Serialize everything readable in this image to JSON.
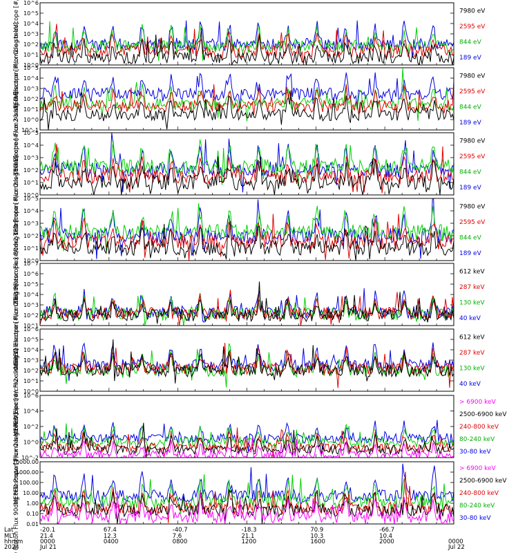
{
  "colors": {
    "black": "#000000",
    "red": "#e00000",
    "green": "#00d000",
    "blue": "#0000e0",
    "magenta": "#ff00ff",
    "text_green": "#00b000"
  },
  "footer": {
    "row_labels": [
      "Lat",
      "MLT",
      "hhmm",
      "2024"
    ],
    "columns": [
      {
        "lat": "-20.1",
        "mlt": "21.4",
        "hhmm": "0000",
        "date": "Jul 21"
      },
      {
        "lat": "67.4",
        "mlt": "12.3",
        "hhmm": "0400",
        "date": ""
      },
      {
        "lat": "-40.7",
        "mlt": "7.6",
        "hhmm": "0800",
        "date": ""
      },
      {
        "lat": "-18.3",
        "mlt": "21.1",
        "hhmm": "1200",
        "date": ""
      },
      {
        "lat": "70.9",
        "mlt": "10.3",
        "hhmm": "1600",
        "date": ""
      },
      {
        "lat": "-66.7",
        "mlt": "10.4",
        "hhmm": "2000",
        "date": ""
      },
      {
        "lat": "",
        "mlt": "",
        "hhmm": "0000",
        "date": "Jul 22"
      }
    ]
  },
  "chart_data": [
    {
      "type": "line",
      "scale": "log",
      "ylabel": "TED Electron Flux 0deg telescope [#/cm2-s-str-eV]",
      "ylim": [
        1,
        1000000
      ],
      "xlim_hours": [
        0,
        24
      ],
      "yticks": [
        "10^0",
        "10^1",
        "10^2",
        "10^3",
        "10^4",
        "10^5",
        "10^6"
      ],
      "legend_position": "right",
      "series": [
        {
          "name": "7980 eV",
          "color": "black",
          "typical": 5
        },
        {
          "name": "2595 eV",
          "color": "red",
          "typical": 20
        },
        {
          "name": "844 eV",
          "color": "green",
          "typical": 60
        },
        {
          "name": "189 eV",
          "color": "blue",
          "typical": 100
        }
      ]
    },
    {
      "type": "line",
      "scale": "log",
      "ylabel": "TED Electron Flux 30deg telescope [#/cm2-s-str-eV]",
      "ylim": [
        0.1,
        100000
      ],
      "xlim_hours": [
        0,
        24
      ],
      "yticks": [
        "10^-1",
        "10^0",
        "10^1",
        "10^2",
        "10^3",
        "10^4",
        "10^5"
      ],
      "legend_position": "right",
      "series": [
        {
          "name": "7980 eV",
          "color": "black",
          "typical": 3
        },
        {
          "name": "2595 eV",
          "color": "red",
          "typical": 20
        },
        {
          "name": "844 eV",
          "color": "green",
          "typical": 30
        },
        {
          "name": "189 eV",
          "color": "blue",
          "typical": 300
        }
      ]
    },
    {
      "type": "line",
      "scale": "log",
      "ylabel": "TED Proton Flux 0deg telescope [#/cm2-s-str-eV]",
      "ylim": [
        1,
        100000
      ],
      "xlim_hours": [
        0,
        24
      ],
      "yticks": [
        "10^0",
        "10^1",
        "10^2",
        "10^3",
        "10^4",
        "10^5"
      ],
      "legend_position": "right",
      "series": [
        {
          "name": "7980 eV",
          "color": "black",
          "typical": 10
        },
        {
          "name": "2595 eV",
          "color": "red",
          "typical": 30
        },
        {
          "name": "844 eV",
          "color": "green",
          "typical": 200
        },
        {
          "name": "189 eV",
          "color": "blue",
          "typical": 100
        }
      ]
    },
    {
      "type": "line",
      "scale": "log",
      "ylabel": "TED Proton Flux 30deg telescope [#/cm2-s-str-eV]",
      "ylim": [
        1,
        100000
      ],
      "xlim_hours": [
        0,
        24
      ],
      "yticks": [
        "10^0",
        "10^1",
        "10^2",
        "10^3",
        "10^4",
        "10^5"
      ],
      "legend_position": "right",
      "series": [
        {
          "name": "7980 eV",
          "color": "black",
          "typical": 10
        },
        {
          "name": "2595 eV",
          "color": "red",
          "typical": 30
        },
        {
          "name": "844 eV",
          "color": "green",
          "typical": 200
        },
        {
          "name": "189 eV",
          "color": "blue",
          "typical": 100
        }
      ]
    },
    {
      "type": "line",
      "scale": "log",
      "ylabel": "MEPED Electron Flux 0deg telescope [#/cm2-s-str]",
      "ylim": [
        10,
        10000000
      ],
      "xlim_hours": [
        0,
        24
      ],
      "yticks": [
        "10^1",
        "10^2",
        "10^3",
        "10^4",
        "10^5",
        "10^6",
        "10^7"
      ],
      "legend_position": "right",
      "series": [
        {
          "name": "612 keV",
          "color": "black",
          "typical": 100
        },
        {
          "name": "287 keV",
          "color": "red",
          "typical": 150
        },
        {
          "name": "130 keV",
          "color": "green",
          "typical": 120
        },
        {
          "name": "40 keV",
          "color": "blue",
          "typical": 200
        }
      ]
    },
    {
      "type": "line",
      "scale": "log",
      "ylabel": "MEPED Electron Flux 90deg telescope [#/cm2-s-str]",
      "ylim": [
        1,
        1000000
      ],
      "xlim_hours": [
        0,
        24
      ],
      "yticks": [
        "10^0",
        "10^1",
        "10^2",
        "10^3",
        "10^4",
        "10^5",
        "10^6"
      ],
      "legend_position": "right",
      "series": [
        {
          "name": "612 keV",
          "color": "black",
          "typical": 100
        },
        {
          "name": "287 keV",
          "color": "red",
          "typical": 150
        },
        {
          "name": "130 keV",
          "color": "green",
          "typical": 100
        },
        {
          "name": "40 keV",
          "color": "blue",
          "typical": 300
        }
      ]
    },
    {
      "type": "line",
      "scale": "log",
      "ylabel": "MEPED Proton Flux 0deg telescope [#/cm2-s-str-keV]",
      "ylim": [
        0.01,
        1000000
      ],
      "xlim_hours": [
        0,
        24
      ],
      "yticks": [
        "10^-2",
        "10^0",
        "10^2",
        "10^4",
        "10^6"
      ],
      "legend_position": "right",
      "series": [
        {
          "name": "> 6900 keV",
          "color": "magenta",
          "typical": 0.02
        },
        {
          "name": "2500-6900 keV",
          "color": "black",
          "typical": 0.1
        },
        {
          "name": "240-800 keV",
          "color": "red",
          "typical": 0.2
        },
        {
          "name": "80-240 keV",
          "color": "green",
          "typical": 1
        },
        {
          "name": "30-80 keV",
          "color": "blue",
          "typical": 3
        }
      ]
    },
    {
      "type": "line",
      "scale": "log",
      "ylabel": "MEPED Proton Flux 90deg telescope [#/cm2-s-str-keV]",
      "ylim": [
        0.01,
        10000
      ],
      "xlim_hours": [
        0,
        24
      ],
      "yticks": [
        "0.01",
        "0.10",
        "1.00",
        "10.00",
        "100.00",
        "1000.00",
        "10000.00"
      ],
      "legend_position": "right",
      "series": [
        {
          "name": "> 6900 keV",
          "color": "magenta",
          "typical": 0.05
        },
        {
          "name": "2500-6900 keV",
          "color": "black",
          "typical": 0.2
        },
        {
          "name": "240-800 keV",
          "color": "red",
          "typical": 0.3
        },
        {
          "name": "80-240 keV",
          "color": "green",
          "typical": 1.5
        },
        {
          "name": "30-80 keV",
          "color": "blue",
          "typical": 5
        }
      ]
    }
  ]
}
